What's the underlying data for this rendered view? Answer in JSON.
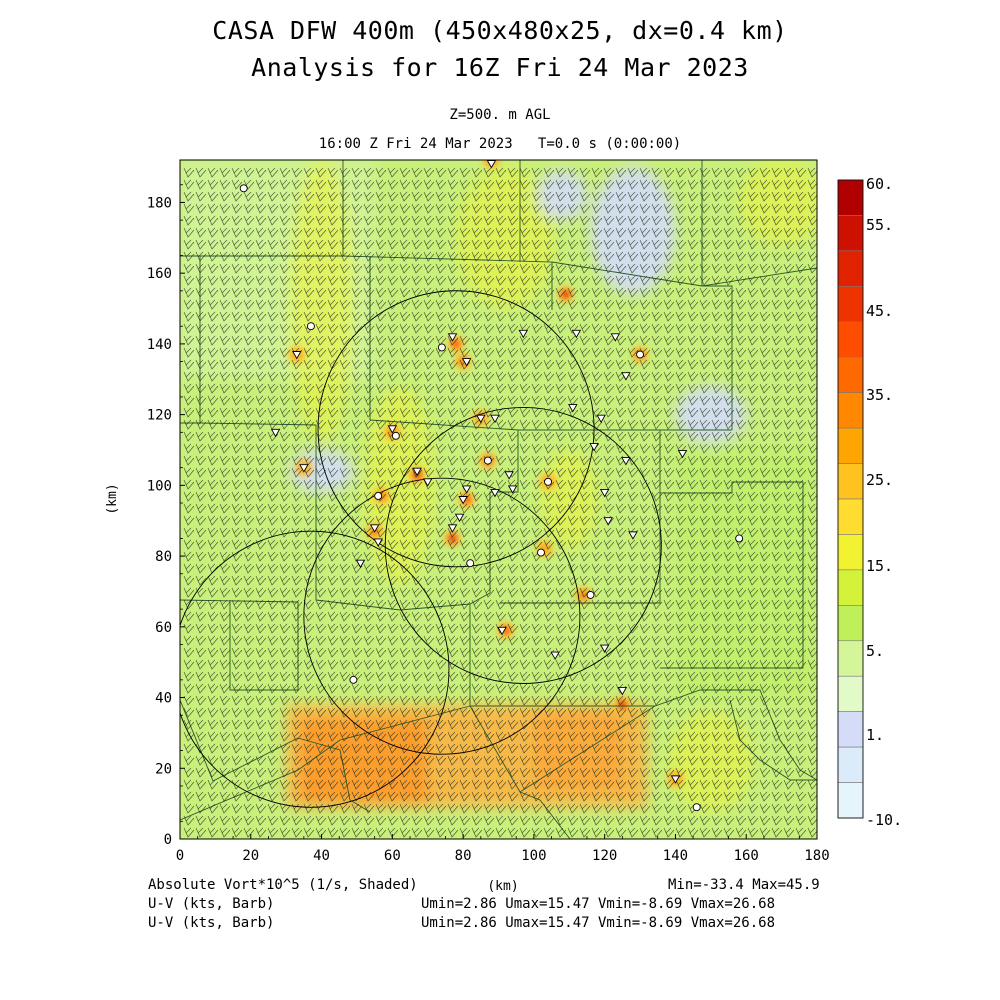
{
  "chart_data": {
    "type": "heatmap",
    "title": [
      "CASA DFW 400m (450x480x25, dx=0.4 km)",
      "Analysis for 16Z Fri 24 Mar 2023"
    ],
    "subtitle": [
      "Z=500. m AGL",
      "16:00 Z Fri 24 Mar 2023   T=0.0 s (0:00:00)"
    ],
    "xlabel": "(km)",
    "ylabel": "(km)",
    "xlim": [
      0,
      180
    ],
    "ylim": [
      0,
      192
    ],
    "xticks": [
      "0",
      "20",
      "40",
      "60",
      "80",
      "100",
      "120",
      "140",
      "160",
      "180"
    ],
    "yticks": [
      "0",
      "20",
      "40",
      "60",
      "80",
      "100",
      "120",
      "140",
      "160",
      "180"
    ],
    "colorbar": {
      "labels": [
        "60.",
        "55.",
        "45.",
        "35.",
        "25.",
        "15.",
        "5.",
        "1.",
        "-10."
      ],
      "colors": [
        "#b00000",
        "#cc1100",
        "#e02200",
        "#ee3300",
        "#ff4d00",
        "#ff6a00",
        "#ff8800",
        "#ffa500",
        "#ffc21f",
        "#ffdd30",
        "#f2f230",
        "#d4f23a",
        "#bff05a",
        "#d4f59a",
        "#e2f9c8",
        "#d4dcf8",
        "#dcebfa",
        "#e6f4fc"
      ]
    },
    "field_name": "Absolute Vort*10^5 (1/s, Shaded)",
    "stats": "Min=-33.4 Max=45.9",
    "barbs": [
      {
        "name": "U-V (kts, Barb)",
        "stats": "Umin=2.86 Umax=15.47 Vmin=-8.69 Vmax=26.68"
      },
      {
        "name": "U-V (kts, Barb)",
        "stats": "Umin=2.86 Umax=15.47 Vmin=-8.69 Vmax=26.68"
      }
    ],
    "radar_rings": [
      {
        "x": 78,
        "y": 116,
        "r": 39
      },
      {
        "x": 97,
        "y": 83,
        "r": 39
      },
      {
        "x": 74,
        "y": 63,
        "r": 39
      },
      {
        "x": 37,
        "y": 48,
        "r": 39
      }
    ],
    "warm_band": {
      "y_min": 9,
      "y_max": 38,
      "x_min": 30,
      "x_max": 132
    },
    "low_regions": [
      {
        "x": 128,
        "y": 172,
        "rx": 12,
        "ry": 18
      },
      {
        "x": 150,
        "y": 120,
        "rx": 10,
        "ry": 8
      },
      {
        "x": 40,
        "y": 104,
        "rx": 9,
        "ry": 6
      },
      {
        "x": 108,
        "y": 182,
        "rx": 7,
        "ry": 7
      }
    ],
    "hotspots": [
      {
        "x": 109,
        "y": 154,
        "v": 40
      },
      {
        "x": 78,
        "y": 140,
        "v": 38
      },
      {
        "x": 80,
        "y": 135,
        "v": 32
      },
      {
        "x": 130,
        "y": 137,
        "v": 30
      },
      {
        "x": 33,
        "y": 137,
        "v": 28
      },
      {
        "x": 85,
        "y": 119,
        "v": 28
      },
      {
        "x": 60,
        "y": 115,
        "v": 30
      },
      {
        "x": 87,
        "y": 107,
        "v": 35
      },
      {
        "x": 67,
        "y": 103,
        "v": 40
      },
      {
        "x": 57,
        "y": 97,
        "v": 32
      },
      {
        "x": 81,
        "y": 96,
        "v": 35
      },
      {
        "x": 104,
        "y": 101,
        "v": 28
      },
      {
        "x": 77,
        "y": 85,
        "v": 40
      },
      {
        "x": 103,
        "y": 82,
        "v": 25
      },
      {
        "x": 55,
        "y": 87,
        "v": 30
      },
      {
        "x": 114,
        "y": 69,
        "v": 32
      },
      {
        "x": 92,
        "y": 59,
        "v": 35
      },
      {
        "x": 125,
        "y": 38,
        "v": 45
      },
      {
        "x": 35,
        "y": 105,
        "v": 25
      },
      {
        "x": 140,
        "y": 17,
        "v": 28
      },
      {
        "x": 88,
        "y": 192,
        "v": 30
      }
    ],
    "sites_circle": [
      {
        "x": 18,
        "y": 184
      },
      {
        "x": 37,
        "y": 145
      },
      {
        "x": 74,
        "y": 139
      },
      {
        "x": 130,
        "y": 137
      },
      {
        "x": 61,
        "y": 114
      },
      {
        "x": 87,
        "y": 107
      },
      {
        "x": 56,
        "y": 97
      },
      {
        "x": 104,
        "y": 101
      },
      {
        "x": 102,
        "y": 81
      },
      {
        "x": 82,
        "y": 78
      },
      {
        "x": 116,
        "y": 69
      },
      {
        "x": 49,
        "y": 45
      },
      {
        "x": 158,
        "y": 85
      },
      {
        "x": 146,
        "y": 9
      }
    ],
    "sites_triangle": [
      {
        "x": 88,
        "y": 191
      },
      {
        "x": 77,
        "y": 142
      },
      {
        "x": 81,
        "y": 135
      },
      {
        "x": 97,
        "y": 143
      },
      {
        "x": 112,
        "y": 143
      },
      {
        "x": 123,
        "y": 142
      },
      {
        "x": 126,
        "y": 131
      },
      {
        "x": 33,
        "y": 137
      },
      {
        "x": 111,
        "y": 122
      },
      {
        "x": 119,
        "y": 119
      },
      {
        "x": 85,
        "y": 119
      },
      {
        "x": 89,
        "y": 119
      },
      {
        "x": 27,
        "y": 115
      },
      {
        "x": 60,
        "y": 116
      },
      {
        "x": 67,
        "y": 104
      },
      {
        "x": 70,
        "y": 101
      },
      {
        "x": 81,
        "y": 99
      },
      {
        "x": 89,
        "y": 98
      },
      {
        "x": 93,
        "y": 103
      },
      {
        "x": 94,
        "y": 99
      },
      {
        "x": 117,
        "y": 111
      },
      {
        "x": 126,
        "y": 107
      },
      {
        "x": 142,
        "y": 109
      },
      {
        "x": 120,
        "y": 98
      },
      {
        "x": 121,
        "y": 90
      },
      {
        "x": 128,
        "y": 86
      },
      {
        "x": 80,
        "y": 96
      },
      {
        "x": 77,
        "y": 88
      },
      {
        "x": 79,
        "y": 91
      },
      {
        "x": 55,
        "y": 88
      },
      {
        "x": 56,
        "y": 84
      },
      {
        "x": 51,
        "y": 78
      },
      {
        "x": 91,
        "y": 59
      },
      {
        "x": 106,
        "y": 52
      },
      {
        "x": 120,
        "y": 54
      },
      {
        "x": 125,
        "y": 42
      },
      {
        "x": 140,
        "y": 17
      },
      {
        "x": 35,
        "y": 105
      }
    ]
  }
}
